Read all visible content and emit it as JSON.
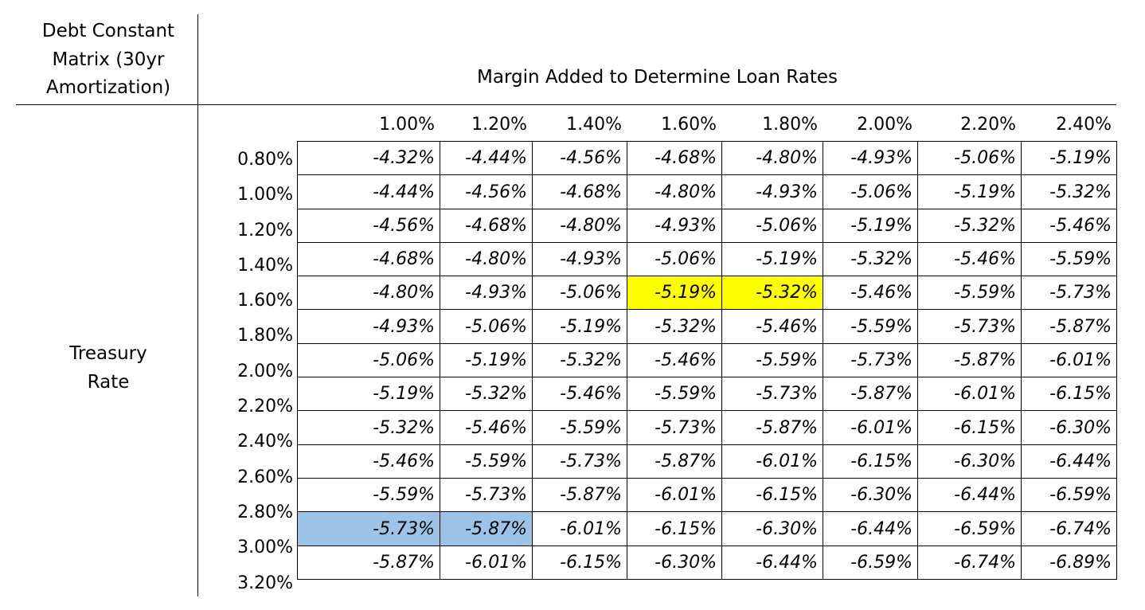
{
  "corner_title": [
    "Debt Constant",
    "Matrix (30yr",
    "Amortization)"
  ],
  "margin_title": "Margin Added to Determine Loan Rates",
  "treasury_title": [
    "Treasury",
    "Rate"
  ],
  "colors": {
    "highlight_yellow": "#ffff00",
    "highlight_blue": "#9dc3e6"
  },
  "columns": [
    "1.00%",
    "1.20%",
    "1.40%",
    "1.60%",
    "1.80%",
    "2.00%",
    "2.20%",
    "2.40%"
  ],
  "rows": [
    {
      "rate": "0.80%",
      "values": [
        "-4.32%",
        "-4.44%",
        "-4.56%",
        "-4.68%",
        "-4.80%",
        "-4.93%",
        "-5.06%",
        "-5.19%"
      ],
      "highlight": []
    },
    {
      "rate": "1.00%",
      "values": [
        "-4.44%",
        "-4.56%",
        "-4.68%",
        "-4.80%",
        "-4.93%",
        "-5.06%",
        "-5.19%",
        "-5.32%"
      ],
      "highlight": []
    },
    {
      "rate": "1.20%",
      "values": [
        "-4.56%",
        "-4.68%",
        "-4.80%",
        "-4.93%",
        "-5.06%",
        "-5.19%",
        "-5.32%",
        "-5.46%"
      ],
      "highlight": []
    },
    {
      "rate": "1.40%",
      "values": [
        "-4.68%",
        "-4.80%",
        "-4.93%",
        "-5.06%",
        "-5.19%",
        "-5.32%",
        "-5.46%",
        "-5.59%"
      ],
      "highlight": []
    },
    {
      "rate": "1.60%",
      "values": [
        "-4.80%",
        "-4.93%",
        "-5.06%",
        "-5.19%",
        "-5.32%",
        "-5.46%",
        "-5.59%",
        "-5.73%"
      ],
      "highlight": [
        "",
        "",
        "",
        "yellow",
        "yellow",
        "",
        "",
        ""
      ]
    },
    {
      "rate": "1.80%",
      "values": [
        "-4.93%",
        "-5.06%",
        "-5.19%",
        "-5.32%",
        "-5.46%",
        "-5.59%",
        "-5.73%",
        "-5.87%"
      ],
      "highlight": []
    },
    {
      "rate": "2.00%",
      "values": [
        "-5.06%",
        "-5.19%",
        "-5.32%",
        "-5.46%",
        "-5.59%",
        "-5.73%",
        "-5.87%",
        "-6.01%"
      ],
      "highlight": []
    },
    {
      "rate": "2.20%",
      "values": [
        "-5.19%",
        "-5.32%",
        "-5.46%",
        "-5.59%",
        "-5.73%",
        "-5.87%",
        "-6.01%",
        "-6.15%"
      ],
      "highlight": []
    },
    {
      "rate": "2.40%",
      "values": [
        "-5.32%",
        "-5.46%",
        "-5.59%",
        "-5.73%",
        "-5.87%",
        "-6.01%",
        "-6.15%",
        "-6.30%"
      ],
      "highlight": []
    },
    {
      "rate": "2.60%",
      "values": [
        "-5.46%",
        "-5.59%",
        "-5.73%",
        "-5.87%",
        "-6.01%",
        "-6.15%",
        "-6.30%",
        "-6.44%"
      ],
      "highlight": []
    },
    {
      "rate": "2.80%",
      "values": [
        "-5.59%",
        "-5.73%",
        "-5.87%",
        "-6.01%",
        "-6.15%",
        "-6.30%",
        "-6.44%",
        "-6.59%"
      ],
      "highlight": []
    },
    {
      "rate": "3.00%",
      "values": [
        "-5.73%",
        "-5.87%",
        "-6.01%",
        "-6.15%",
        "-6.30%",
        "-6.44%",
        "-6.59%",
        "-6.74%"
      ],
      "highlight": [
        "blue",
        "blue",
        "",
        "",
        "",
        "",
        "",
        ""
      ]
    },
    {
      "rate": "3.20%",
      "values": [
        "-5.87%",
        "-6.01%",
        "-6.15%",
        "-6.30%",
        "-6.44%",
        "-6.59%",
        "-6.74%",
        "-6.89%"
      ],
      "highlight": []
    }
  ]
}
